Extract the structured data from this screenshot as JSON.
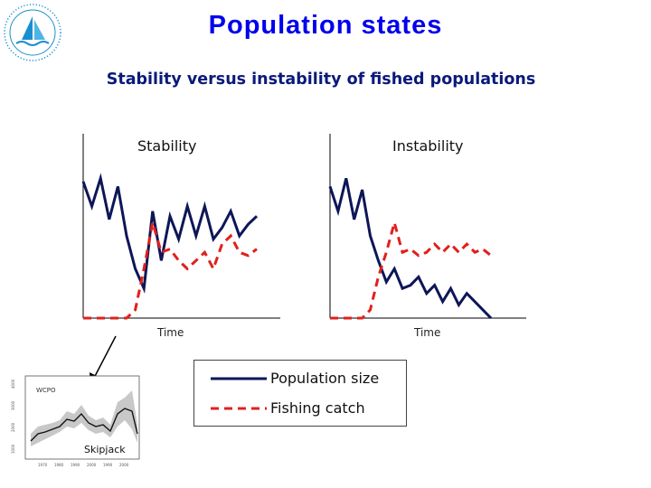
{
  "title": "Population states",
  "subtitle": "Stability versus instability of fished populations",
  "colors": {
    "title": "#0000ee",
    "subtitle": "#0a1a7a",
    "population_line": "#0d1657",
    "catch_line": "#e0201c",
    "logo": "#1a8fd0"
  },
  "logo": {
    "icon": "sailboat-logo"
  },
  "chart_data": [
    {
      "type": "line",
      "title": "Stability",
      "xlabel": "Time",
      "ylabel": "",
      "series": [
        {
          "name": "Population size",
          "x": [
            1,
            2,
            3,
            4,
            5,
            6,
            7,
            8,
            9,
            10,
            11,
            12,
            13,
            14,
            15,
            16,
            17,
            18,
            19,
            20,
            21
          ],
          "values": [
            83,
            68,
            85,
            60,
            80,
            50,
            30,
            18,
            65,
            35,
            62,
            48,
            68,
            50,
            68,
            48,
            55,
            65,
            50,
            57,
            62
          ]
        },
        {
          "name": "Fishing catch",
          "x": [
            1,
            2,
            3,
            4,
            5,
            6,
            7,
            8,
            9,
            10,
            11,
            12,
            13,
            14,
            15,
            16,
            17,
            18,
            19,
            20,
            21
          ],
          "values": [
            0,
            0,
            0,
            0,
            0,
            0,
            5,
            30,
            58,
            40,
            42,
            35,
            30,
            35,
            40,
            30,
            45,
            50,
            40,
            38,
            42
          ]
        }
      ]
    },
    {
      "type": "line",
      "title": "Instability",
      "xlabel": "Time",
      "ylabel": "",
      "series": [
        {
          "name": "Population size",
          "x": [
            1,
            2,
            3,
            4,
            5,
            6,
            7,
            8,
            9,
            10,
            11,
            12,
            13,
            14,
            15,
            16,
            17,
            18,
            19,
            20,
            21
          ],
          "values": [
            80,
            65,
            85,
            60,
            78,
            50,
            35,
            22,
            30,
            18,
            20,
            25,
            15,
            20,
            10,
            18,
            8,
            15,
            10,
            5,
            0
          ]
        },
        {
          "name": "Fishing catch",
          "x": [
            1,
            2,
            3,
            4,
            5,
            6,
            7,
            8,
            9,
            10,
            11,
            12,
            13,
            14,
            15,
            16,
            17,
            18,
            19,
            20,
            21
          ],
          "values": [
            0,
            0,
            0,
            0,
            0,
            5,
            25,
            40,
            58,
            40,
            42,
            38,
            40,
            45,
            40,
            45,
            40,
            45,
            40,
            42,
            38
          ]
        }
      ]
    }
  ],
  "legend": {
    "items": [
      {
        "label": "Population size",
        "style": "solid"
      },
      {
        "label": "Fishing catch",
        "style": "dashed"
      }
    ]
  },
  "thumbnail": {
    "label": "WCPO",
    "caption": "Skipjack"
  }
}
